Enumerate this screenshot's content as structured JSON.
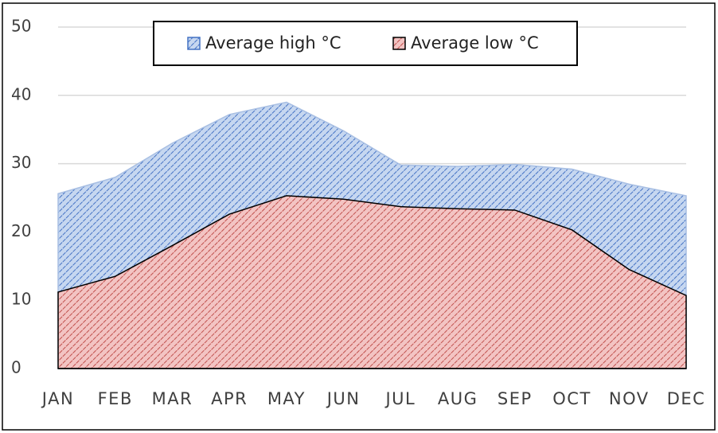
{
  "chart_data": {
    "type": "area",
    "categories": [
      "JAN",
      "FEB",
      "MAR",
      "APR",
      "MAY",
      "JUN",
      "JUL",
      "AUG",
      "SEP",
      "OCT",
      "NOV",
      "DEC"
    ],
    "series": [
      {
        "name": "Average high °C",
        "color": "#4472c4",
        "fill": "#b4cbeb",
        "values": [
          25.6,
          28,
          33,
          37.2,
          39,
          34.8,
          29.8,
          29.6,
          29.9,
          29.2,
          27,
          25.3
        ]
      },
      {
        "name": "Average low °C",
        "color": "#c0504d",
        "fill": "#efb3b2",
        "values": [
          11.2,
          13.5,
          18,
          22.6,
          25.3,
          24.8,
          23.7,
          23.4,
          23.2,
          20.3,
          14.5,
          10.7
        ]
      }
    ],
    "ylim": [
      0,
      50
    ],
    "yticks": [
      0,
      10,
      20,
      30,
      40,
      50
    ],
    "grid": true,
    "legend": "top"
  }
}
